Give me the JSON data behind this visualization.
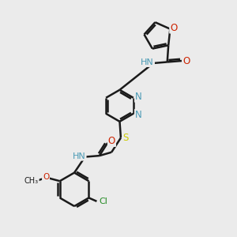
{
  "background_color": "#ebebeb",
  "bond_color": "#1a1a1a",
  "bond_width": 1.8,
  "atom_colors": {
    "N": "#4a9ab5",
    "O": "#cc2200",
    "S": "#cccc00",
    "Cl": "#228b22",
    "C": "#1a1a1a",
    "H": "#4a9ab5"
  },
  "font_size": 8.5,
  "fig_size": [
    3.0,
    3.0
  ],
  "dpi": 100,
  "xlim": [
    0,
    10
  ],
  "ylim": [
    0,
    10
  ]
}
